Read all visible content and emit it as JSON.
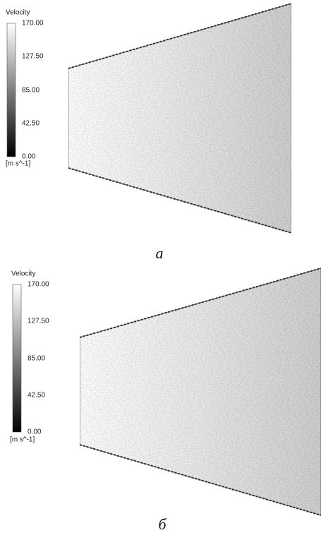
{
  "panels": [
    {
      "legend_title": "Velocity",
      "ticks": [
        "170.00",
        "127.50",
        "85.00",
        "42.50",
        "0.00"
      ],
      "unit": "[m s^-1]",
      "caption": "а"
    },
    {
      "legend_title": "Velocity",
      "ticks": [
        "170.00",
        "127.50",
        "85.00",
        "42.50",
        "0.00"
      ],
      "unit": "[m s^-1]",
      "caption": "б"
    }
  ]
}
